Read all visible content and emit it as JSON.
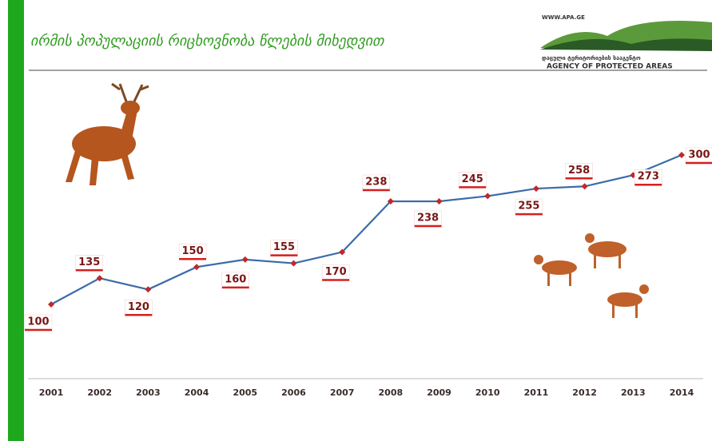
{
  "header": {
    "title": "ირმის პოპულაციის რიცხოვნობა წლების მიხედვით",
    "logo_url": "WWW.APA.GE",
    "logo_georgian": "დაცული ტერიტორიების სააგენტო",
    "logo_english": "AGENCY OF PROTECTED AREAS"
  },
  "chart_data": {
    "type": "line",
    "categories": [
      "2001",
      "2002",
      "2003",
      "2004",
      "2005",
      "2006",
      "2007",
      "2008",
      "2009",
      "2010",
      "2011",
      "2012",
      "2013",
      "2014"
    ],
    "values": [
      100,
      135,
      120,
      150,
      160,
      155,
      170,
      238,
      238,
      245,
      255,
      258,
      273,
      300
    ],
    "color": "#3b6ca8",
    "marker_color": "#c0282d"
  }
}
